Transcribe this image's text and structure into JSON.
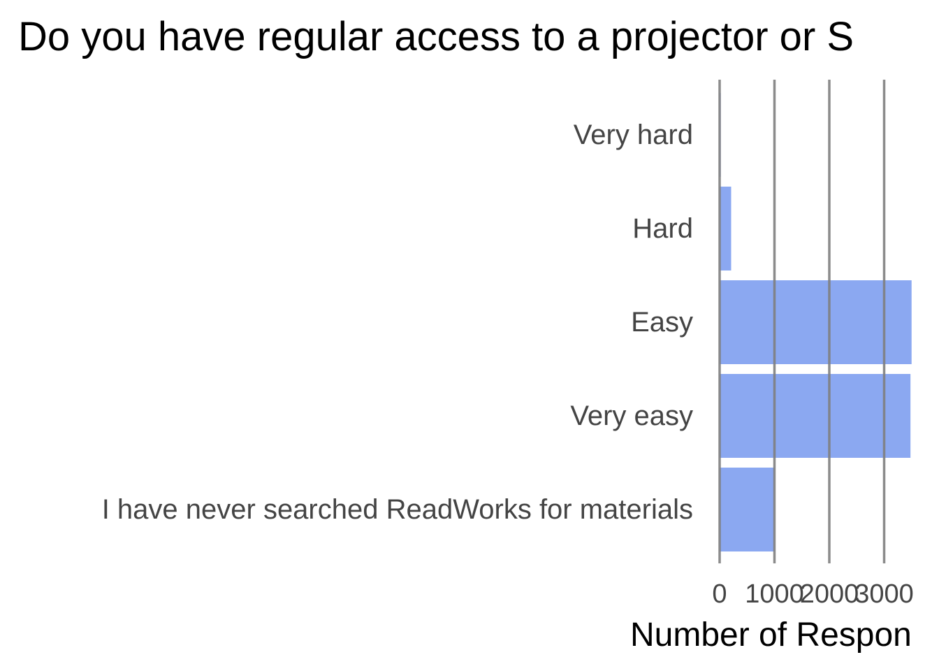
{
  "chart_data": {
    "type": "bar",
    "orientation": "horizontal",
    "title": "Do you have regular access to a projector or S",
    "xlabel": "Number of Respon",
    "ylabel": "",
    "categories": [
      "Very hard",
      "Hard",
      "Easy",
      "Very easy",
      "I have never searched ReadWorks for materials"
    ],
    "values": [
      20,
      210,
      3500,
      3480,
      1000
    ],
    "xlim": [
      0,
      3500
    ],
    "xticks": [
      0,
      1000,
      2000,
      3000
    ],
    "xtick_labels": [
      "0",
      "1000",
      "2000",
      "3000"
    ],
    "grid": true,
    "bar_color": "#7799ee",
    "grid_color": "#7f7f7f"
  }
}
